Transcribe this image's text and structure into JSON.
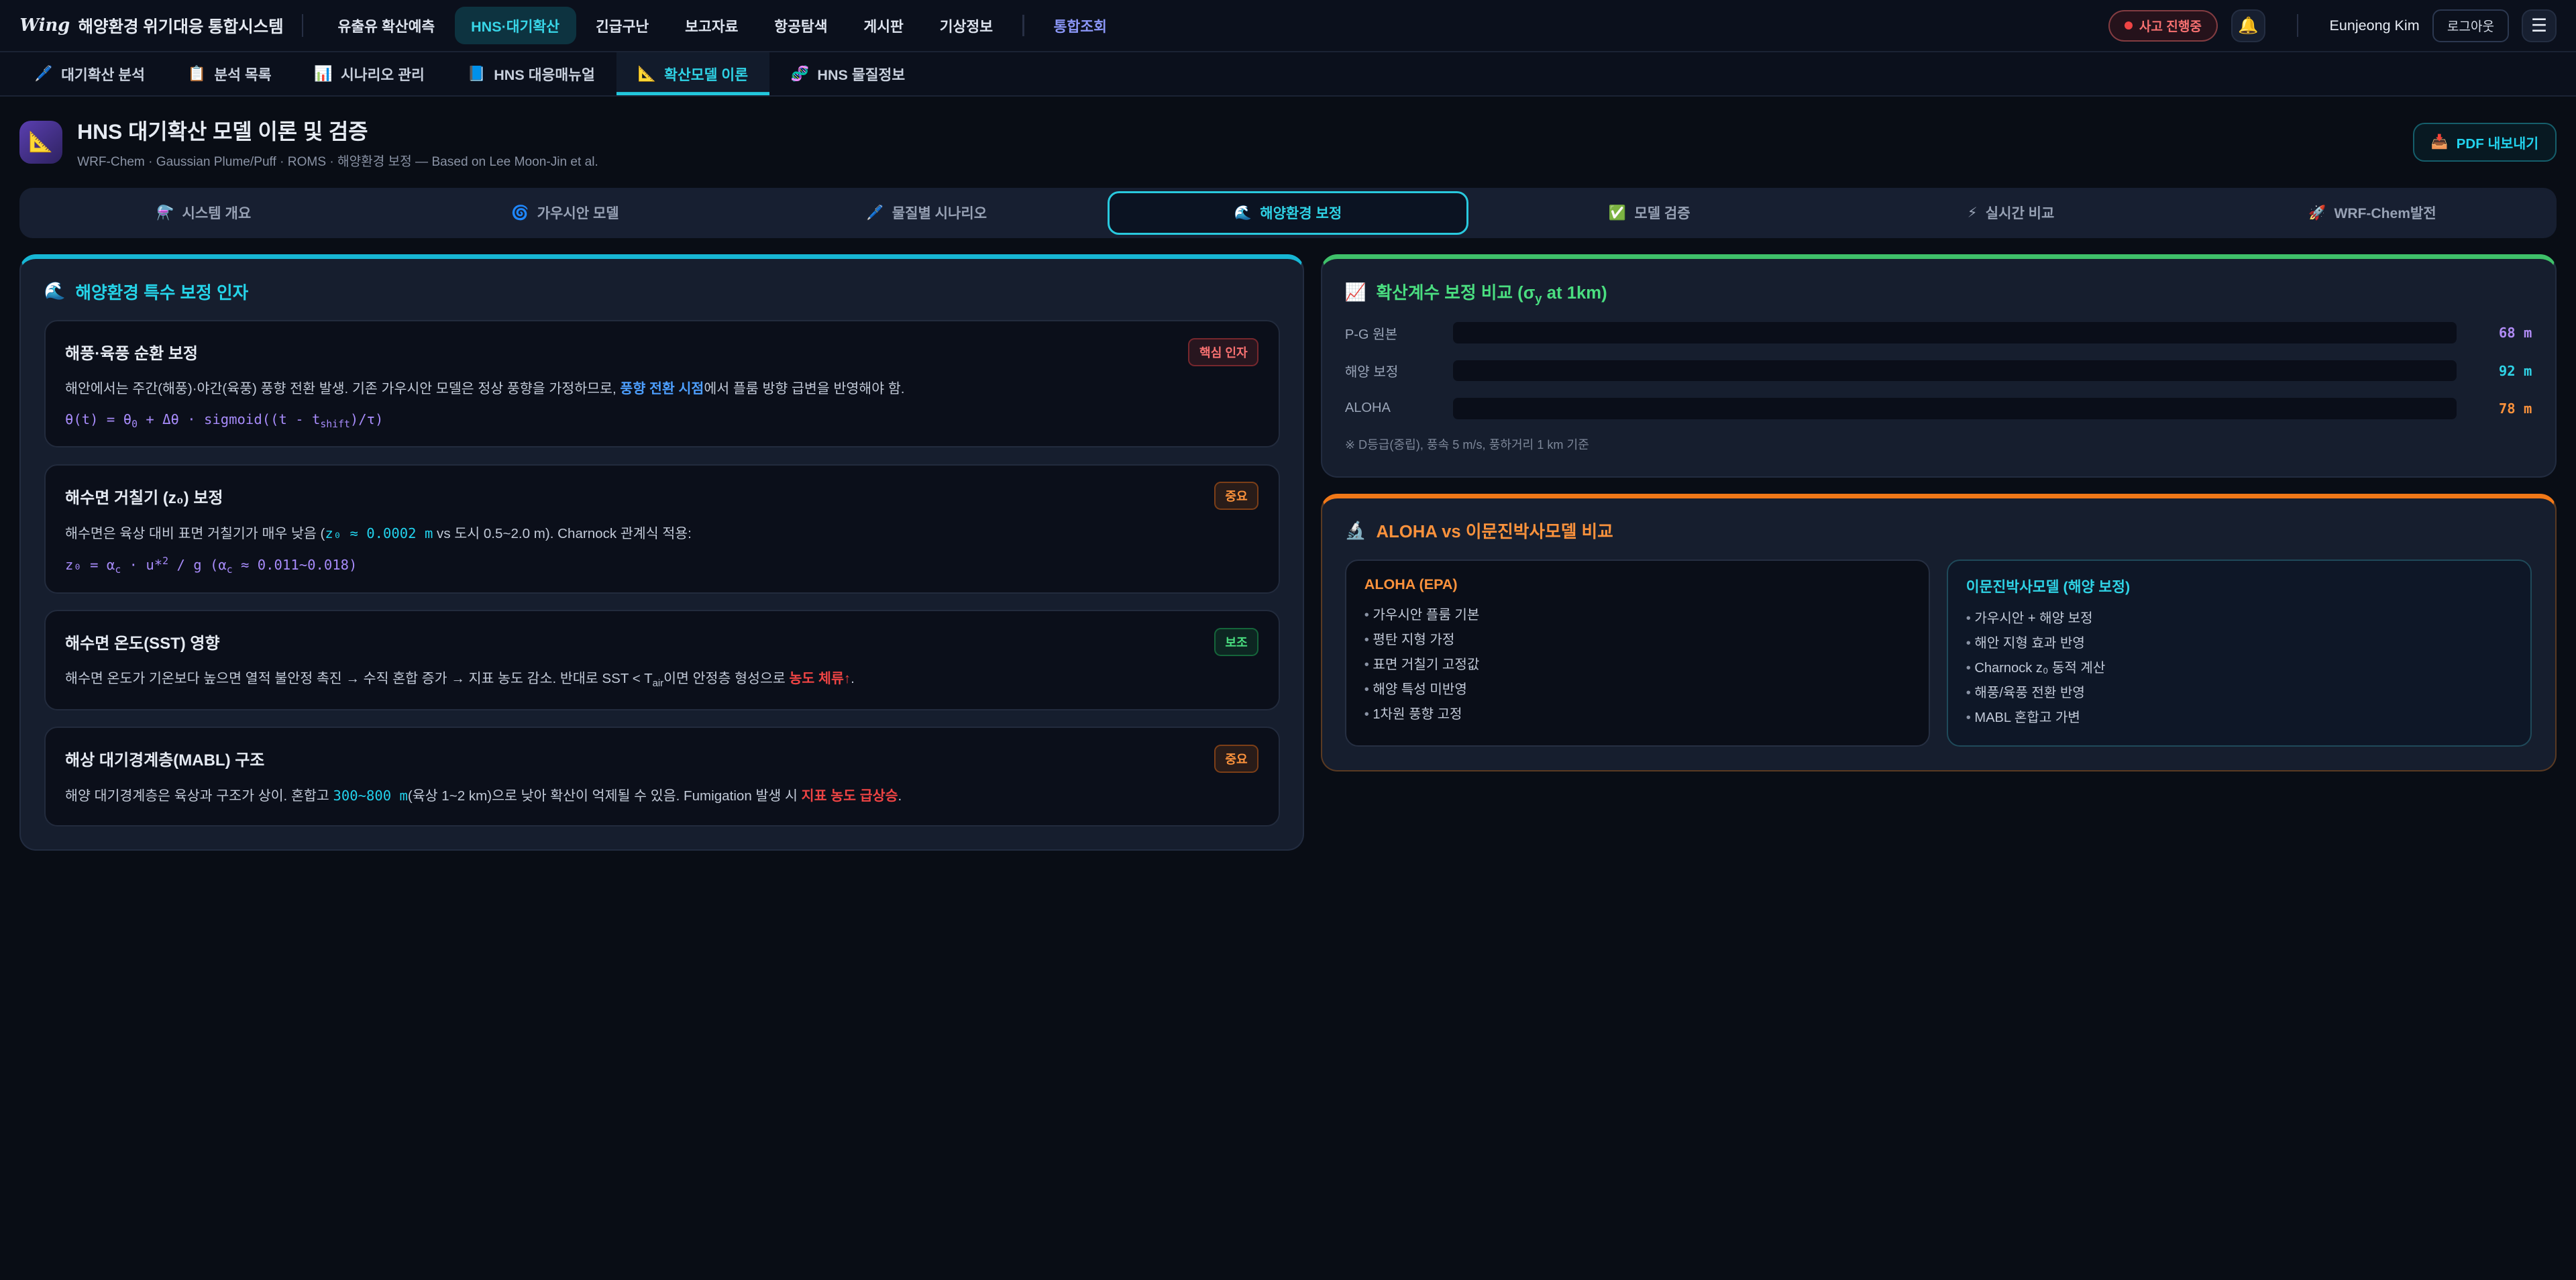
{
  "header": {
    "logo_mark": "Wing",
    "logo_title": "해양환경 위기대응 통합시스템",
    "nav": [
      {
        "label": "유출유 확산예측"
      },
      {
        "label": "HNS·대기확산"
      },
      {
        "label": "긴급구난"
      },
      {
        "label": "보고자료"
      },
      {
        "label": "항공탐색"
      },
      {
        "label": "게시판"
      },
      {
        "label": "기상정보"
      },
      {
        "label": "통합조회"
      }
    ],
    "incident_badge": "사고 진행중",
    "bell_icon": "🔔",
    "user_name": "Eunjeong Kim",
    "logout_label": "로그아웃",
    "menu_icon": "☰"
  },
  "subnav": {
    "items": [
      {
        "icon": "🖊️",
        "label": "대기확산 분석"
      },
      {
        "icon": "📋",
        "label": "분석 목록"
      },
      {
        "icon": "📊",
        "label": "시나리오 관리"
      },
      {
        "icon": "📘",
        "label": "HNS 대응매뉴얼"
      },
      {
        "icon": "📐",
        "label": "확산모델 이론"
      },
      {
        "icon": "🧬",
        "label": "HNS 물질정보"
      }
    ],
    "active": "확산모델 이론"
  },
  "page": {
    "icon": "📐",
    "title": "HNS 대기확산 모델 이론 및 검증",
    "subtitle": "WRF-Chem · Gaussian Plume/Puff · ROMS · 해양환경 보정 — Based on Lee Moon-Jin et al.",
    "export_icon": "📥",
    "export_label": "PDF 내보내기"
  },
  "sections": {
    "items": [
      {
        "icon": "⚗️",
        "label": "시스템 개요"
      },
      {
        "icon": "🌀",
        "label": "가우시안 모델"
      },
      {
        "icon": "🖊️",
        "label": "물질별 시나리오"
      },
      {
        "icon": "🌊",
        "label": "해양환경 보정"
      },
      {
        "icon": "✅",
        "label": "모델 검증"
      },
      {
        "icon": "⚡",
        "label": "실시간 비교"
      },
      {
        "icon": "🚀",
        "label": "WRF-Chem발전"
      }
    ],
    "active": "해양환경 보정"
  },
  "left_panel": {
    "icon": "🌊",
    "title": "해양환경 특수 보정 인자",
    "cards": [
      {
        "title": "해풍·육풍 순환 보정",
        "badge": "핵심 인자",
        "body": [
          {
            "t": "해안에서는 주간(해풍)·야간(육풍) 풍향 전환 발생. 기존 가우시안 모델은 정상 풍향을 가정하므로, "
          },
          {
            "t": "풍향 전환 시점",
            "s": "a"
          },
          {
            "t": "에서 플룸 방향 급변을 반영해야 함."
          }
        ],
        "formula": [
          {
            "t": "θ(t) = θ"
          },
          {
            "t": "0",
            "s": "sub"
          },
          {
            "t": " + Δθ · sigmoid((t - t"
          },
          {
            "t": "shift",
            "s": "sub"
          },
          {
            "t": ")/τ)"
          }
        ]
      },
      {
        "title": "해수면 거칠기 (z₀) 보정",
        "badge": "중요",
        "body": [
          {
            "t": "해수면은 육상 대비 표면 거칠기가 매우 낮음 ("
          },
          {
            "t": "z₀ ≈ 0.0002 m",
            "s": "m"
          },
          {
            "t": " vs 도시 0.5~2.0 m). Charnock 관계식 적용:"
          }
        ],
        "formula": [
          {
            "t": "z₀ = α"
          },
          {
            "t": "c",
            "s": "sub"
          },
          {
            "t": " · u*"
          },
          {
            "t": "2",
            "s": "sup"
          },
          {
            "t": " / g (α"
          },
          {
            "t": "c",
            "s": "sub"
          },
          {
            "t": " ≈ 0.011~0.018)"
          }
        ]
      },
      {
        "title": "해수면 온도(SST) 영향",
        "badge": "보조",
        "body": [
          {
            "t": "해수면 온도가 기온보다 높으면 열적 불안정 촉진 → 수직 혼합 증가 → 지표 농도 감소. 반대로 SST < T"
          },
          {
            "t": "air",
            "s": "sub"
          },
          {
            "t": "이면 안정층 형성으로 "
          },
          {
            "t": "농도 체류↑",
            "s": "d"
          },
          {
            "t": "."
          }
        ]
      },
      {
        "title": "해상 대기경계층(MABL) 구조",
        "badge": "중요",
        "body": [
          {
            "t": "해양 대기경계층은 육상과 구조가 상이. 혼합고 "
          },
          {
            "t": "300~800 m",
            "s": "m"
          },
          {
            "t": "(육상 1~2 km)으로 낮아 확산이 억제될 수 있음. Fumigation 발생 시 "
          },
          {
            "t": "지표 농도 급상승",
            "s": "d"
          },
          {
            "t": "."
          }
        ]
      }
    ]
  },
  "right": {
    "dispersion": {
      "icon": "📈",
      "title_segs": [
        {
          "t": "확산계수 보정 비교 (σ"
        },
        {
          "t": "y",
          "s": "sub"
        },
        {
          "t": " at 1km)"
        }
      ],
      "bars": [
        {
          "label": "P-G 원본",
          "value": 68,
          "unit": "m",
          "value_label": "68 m",
          "pct": 60,
          "from": "#452a74",
          "to": "#9d4be0",
          "value_color": "#b18cf6"
        },
        {
          "label": "해양 보정",
          "value": 92,
          "unit": "m",
          "value_label": "92 m",
          "pct": 82,
          "from": "#0f565f",
          "to": "#16bccc",
          "value_color": "#2fd3e6"
        },
        {
          "label": "ALOHA",
          "value": 78,
          "unit": "m",
          "value_label": "78 m",
          "pct": 71,
          "from": "#74390f",
          "to": "#e8821c",
          "value_color": "#fb923c"
        }
      ],
      "footnote": "※ D등급(중립), 풍속 5 m/s, 풍하거리 1 km 기준"
    },
    "compare": {
      "icon": "🔬",
      "title": "ALOHA vs 이문진박사모델 비교",
      "aloha": {
        "title": "ALOHA (EPA)",
        "items": [
          "가우시안 플룸 기본",
          "평탄 지형 가정",
          "표면 거칠기 고정값",
          "해양 특성 미반영",
          "1차원 풍향 고정"
        ]
      },
      "marine": {
        "title": "이문진박사모델 (해양 보정)",
        "items": [
          "가우시안 + 해양 보정",
          "해안 지형 효과 반영",
          "Charnock z₀ 동적 계산",
          "해풍/육풍 전환 반영",
          "MABL 혼합고 가변"
        ]
      }
    }
  }
}
